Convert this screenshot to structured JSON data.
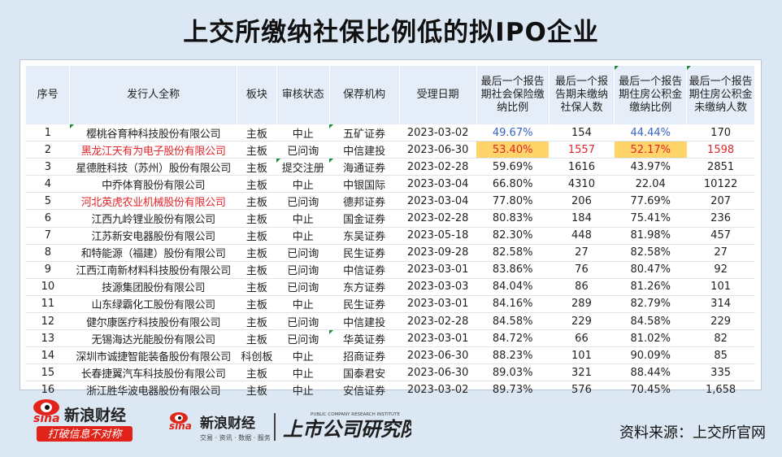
{
  "title": "上交所缴纳社保比例低的拟IPO企业",
  "table": {
    "headers": [
      "序号",
      "发行人全称",
      "板块",
      "审核状态",
      "保荐机构",
      "受理日期",
      "最后一个报告期社会保险缴纳比例",
      "最后一个报告期未缴纳社保人数",
      "最后一个报告期住房公积金缴纳比例",
      "最后一个报告期住房公积金未缴纳人数"
    ],
    "rows": [
      [
        "1",
        "樱桃谷育种科技股份有限公司",
        "主板",
        "中止",
        "五矿证券",
        "2023-03-02",
        "49.67%",
        "154",
        "44.44%",
        "170"
      ],
      [
        "2",
        "黑龙江天有为电子股份有限公司",
        "主板",
        "已问询",
        "中信建投",
        "2023-06-30",
        "53.40%",
        "1557",
        "52.17%",
        "1598"
      ],
      [
        "3",
        "星德胜科技（苏州）股份有限公司",
        "主板",
        "提交注册",
        "海通证券",
        "2023-02-28",
        "59.69%",
        "1616",
        "43.97%",
        "2851"
      ],
      [
        "4",
        "中乔体育股份有限公司",
        "主板",
        "中止",
        "中银国际",
        "2023-03-04",
        "66.80%",
        "4310",
        "22.04",
        "10122"
      ],
      [
        "5",
        "河北英虎农业机械股份有限公司",
        "主板",
        "已问询",
        "德邦证券",
        "2023-03-04",
        "77.80%",
        "206",
        "77.69%",
        "207"
      ],
      [
        "6",
        "江西九岭锂业股份有限公司",
        "主板",
        "中止",
        "国金证券",
        "2023-02-28",
        "80.83%",
        "184",
        "75.41%",
        "236"
      ],
      [
        "7",
        "江苏新安电器股份有限公司",
        "主板",
        "中止",
        "东吴证券",
        "2023-05-18",
        "82.30%",
        "448",
        "81.98%",
        "457"
      ],
      [
        "8",
        "和特能源（福建）股份有限公司",
        "主板",
        "已问询",
        "民生证券",
        "2023-09-28",
        "82.58%",
        "27",
        "82.58%",
        "27"
      ],
      [
        "9",
        "江西江南新材料科技股份有限公司",
        "主板",
        "已问询",
        "中信证券",
        "2023-03-01",
        "83.86%",
        "76",
        "80.47%",
        "92"
      ],
      [
        "10",
        "技源集团股份有限公司",
        "主板",
        "已问询",
        "东方证券",
        "2023-03-03",
        "84.04%",
        "86",
        "81.26%",
        "101"
      ],
      [
        "11",
        "山东绿霸化工股份有限公司",
        "主板",
        "中止",
        "民生证券",
        "2023-03-01",
        "84.16%",
        "289",
        "82.79%",
        "314"
      ],
      [
        "12",
        "健尔康医疗科技股份有限公司",
        "主板",
        "已问询",
        "中信建投",
        "2023-02-28",
        "84.58%",
        "229",
        "84.58%",
        "229"
      ],
      [
        "13",
        "无锡海达光能股份有限公司",
        "主板",
        "已问询",
        "华英证券",
        "2023-03-01",
        "84.72%",
        "66",
        "81.02%",
        "82"
      ],
      [
        "14",
        "深圳市诚捷智能装备股份有限公司",
        "科创板",
        "中止",
        "招商证券",
        "2023-06-30",
        "88.23%",
        "101",
        "90.09%",
        "85"
      ],
      [
        "15",
        "长春捷翼汽车科技股份有限公司",
        "主板",
        "中止",
        "国泰君安",
        "2023-06-30",
        "89.03%",
        "321",
        "88.44%",
        "335"
      ],
      [
        "16",
        "浙江胜华波电器股份有限公司",
        "主板",
        "中止",
        "安信证券",
        "2023-03-02",
        "89.73%",
        "576",
        "70.45%",
        "1,658"
      ]
    ]
  },
  "footer": {
    "logo1_brand": "新浪财经",
    "logo1_sina": "sina",
    "logo1_slogan": "打破信息不对称",
    "logo2_sina": "sina",
    "logo2_brand": "新浪财经",
    "logo2_sub": "交易 · 资讯 · 数据 · 服务",
    "logo3_text": "上市公司研究院",
    "logo3_en": "PUBLIC COMPANY RESEARCH INSTITUTE",
    "source": "资料来源：上交所官网"
  },
  "colors": {
    "highlight_red": "#e0252a",
    "highlight_blue": "#3763c6",
    "highlight_yellow": "#ffd56a",
    "header_bg": "#e5eef8"
  }
}
